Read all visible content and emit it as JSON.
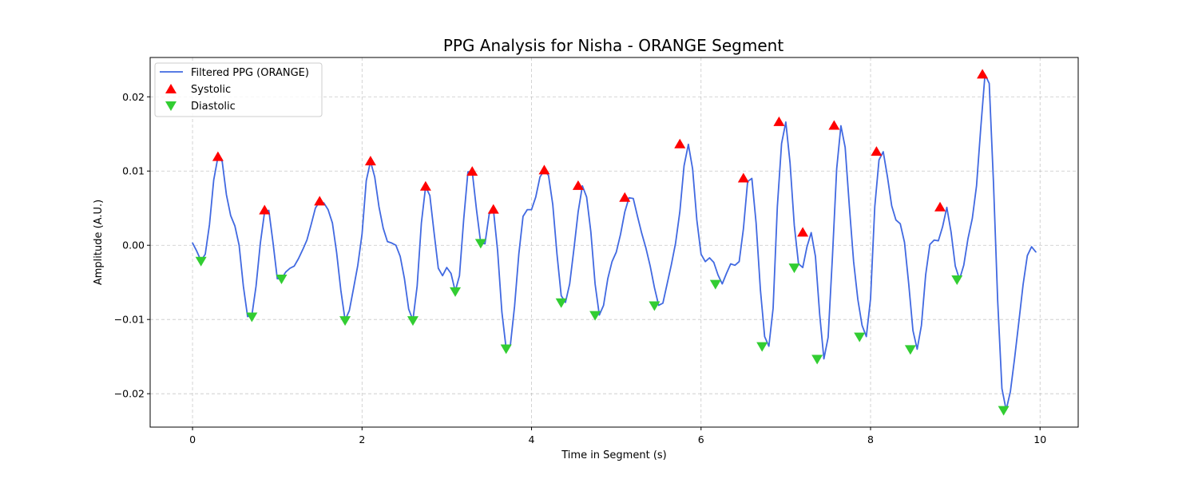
{
  "chart_data": {
    "type": "line",
    "title": "PPG Analysis for Nisha - ORANGE Segment",
    "xlabel": "Time in Segment (s)",
    "ylabel": "Amplitude (A.U.)",
    "xlim": [
      -0.5,
      10.45
    ],
    "ylim": [
      -0.0245,
      0.0253
    ],
    "xticks": [
      0,
      2,
      4,
      6,
      8,
      10
    ],
    "xtick_labels": [
      "0",
      "2",
      "4",
      "6",
      "8",
      "10"
    ],
    "yticks": [
      -0.02,
      -0.01,
      0.0,
      0.01,
      0.02
    ],
    "ytick_labels": [
      "−0.02",
      "−0.01",
      "0.00",
      "0.01",
      "0.02"
    ],
    "grid": true,
    "legend_position": "top-left",
    "series": [
      {
        "name": "Filtered PPG (ORANGE)",
        "kind": "line",
        "color": "#4169e1",
        "x": [
          0.0,
          0.05,
          0.1,
          0.15,
          0.2,
          0.25,
          0.3,
          0.35,
          0.4,
          0.45,
          0.5,
          0.55,
          0.6,
          0.65,
          0.7,
          0.75,
          0.8,
          0.85,
          0.9,
          0.95,
          1.0,
          1.05,
          1.1,
          1.15,
          1.2,
          1.25,
          1.3,
          1.35,
          1.4,
          1.45,
          1.5,
          1.55,
          1.6,
          1.65,
          1.7,
          1.75,
          1.8,
          1.85,
          1.9,
          1.95,
          2.0,
          2.05,
          2.1,
          2.15,
          2.2,
          2.25,
          2.3,
          2.35,
          2.4,
          2.45,
          2.5,
          2.55,
          2.6,
          2.65,
          2.7,
          2.75,
          2.8,
          2.85,
          2.9,
          2.95,
          3.0,
          3.05,
          3.1,
          3.15,
          3.2,
          3.25,
          3.3,
          3.35,
          3.4,
          3.45,
          3.5,
          3.55,
          3.6,
          3.65,
          3.7,
          3.75,
          3.8,
          3.85,
          3.9,
          3.95,
          4.0,
          4.05,
          4.1,
          4.15,
          4.2,
          4.25,
          4.3,
          4.35,
          4.4,
          4.45,
          4.5,
          4.55,
          4.6,
          4.65,
          4.7,
          4.75,
          4.8,
          4.85,
          4.9,
          4.95,
          5.0,
          5.05,
          5.1,
          5.15,
          5.2,
          5.25,
          5.3,
          5.35,
          5.4,
          5.45,
          5.5,
          5.55,
          5.6,
          5.65,
          5.7,
          5.75,
          5.8,
          5.85,
          5.9,
          5.95,
          6.0,
          6.05,
          6.1,
          6.15,
          6.2,
          6.25,
          6.3,
          6.35,
          6.4,
          6.45,
          6.5,
          6.55,
          6.6,
          6.65,
          6.7,
          6.75,
          6.8,
          6.85,
          6.9,
          6.95,
          7.0,
          7.05,
          7.1,
          7.15,
          7.2,
          7.25,
          7.3,
          7.35,
          7.4,
          7.45,
          7.5,
          7.55,
          7.6,
          7.65,
          7.7,
          7.75,
          7.8,
          7.85,
          7.9,
          7.95,
          8.0,
          8.05,
          8.1,
          8.15,
          8.2,
          8.25,
          8.3,
          8.35,
          8.4,
          8.45,
          8.5,
          8.55,
          8.6,
          8.65,
          8.7,
          8.75,
          8.8,
          8.85,
          8.9,
          8.95,
          9.0,
          9.05,
          9.1,
          9.15,
          9.2,
          9.25,
          9.3,
          9.35,
          9.4,
          9.45,
          9.5,
          9.55,
          9.6,
          9.65,
          9.7,
          9.75,
          9.8,
          9.85,
          9.9,
          9.95
        ],
        "y": [
          0.0003,
          -0.0008,
          -0.0021,
          -0.0012,
          0.0028,
          0.0088,
          0.0119,
          0.0113,
          0.0068,
          0.004,
          0.0026,
          0.0,
          -0.0055,
          -0.0096,
          -0.0095,
          -0.0055,
          0.0003,
          0.0045,
          0.0047,
          0.0003,
          -0.0045,
          -0.0045,
          -0.0036,
          -0.0031,
          -0.0028,
          -0.0018,
          -0.0006,
          0.0007,
          0.0028,
          0.005,
          0.0059,
          0.0057,
          0.0048,
          0.003,
          -0.001,
          -0.0061,
          -0.0101,
          -0.0088,
          -0.0058,
          -0.0027,
          0.0015,
          0.0087,
          0.0113,
          0.0092,
          0.0052,
          0.0023,
          0.0005,
          0.0003,
          0.0,
          -0.0015,
          -0.0045,
          -0.0086,
          -0.0101,
          -0.0055,
          0.003,
          0.0079,
          0.0067,
          0.0017,
          -0.0031,
          -0.0041,
          -0.003,
          -0.0038,
          -0.0062,
          -0.0041,
          0.0035,
          0.0099,
          0.0099,
          0.0048,
          0.0003,
          0.0002,
          0.0042,
          0.0048,
          -0.0008,
          -0.009,
          -0.0139,
          -0.0135,
          -0.0082,
          -0.0012,
          0.0039,
          0.0048,
          0.0048,
          0.0065,
          0.0092,
          0.0101,
          0.0094,
          0.0055,
          -0.0012,
          -0.0068,
          -0.0077,
          -0.0052,
          -0.0005,
          0.0045,
          0.008,
          0.0065,
          0.0018,
          -0.0052,
          -0.0094,
          -0.0081,
          -0.0045,
          -0.0022,
          -0.0009,
          0.0015,
          0.0045,
          0.0064,
          0.0063,
          0.0039,
          0.0016,
          -0.0004,
          -0.0028,
          -0.0057,
          -0.0081,
          -0.0078,
          -0.0052,
          -0.0026,
          0.0003,
          0.0045,
          0.0107,
          0.0136,
          0.0103,
          0.0034,
          -0.0012,
          -0.0022,
          -0.0017,
          -0.0023,
          -0.004,
          -0.0052,
          -0.0038,
          -0.0025,
          -0.0027,
          -0.0022,
          0.0022,
          0.0086,
          0.009,
          0.003,
          -0.006,
          -0.0123,
          -0.0136,
          -0.0085,
          0.0052,
          0.0137,
          0.0166,
          0.0111,
          0.0027,
          -0.0025,
          -0.003,
          -0.0002,
          0.0017,
          -0.0015,
          -0.0093,
          -0.0153,
          -0.0124,
          -0.0015,
          0.0103,
          0.0161,
          0.0132,
          0.0052,
          -0.0022,
          -0.0073,
          -0.0108,
          -0.0123,
          -0.0072,
          0.0052,
          0.0115,
          0.0126,
          0.0092,
          0.0053,
          0.0034,
          0.0029,
          0.0004,
          -0.0052,
          -0.0115,
          -0.014,
          -0.0108,
          -0.004,
          0.0001,
          0.0007,
          0.0006,
          0.0025,
          0.0051,
          0.0018,
          -0.0028,
          -0.0046,
          -0.0027,
          0.0009,
          0.0036,
          0.008,
          0.0158,
          0.023,
          0.0218,
          0.0085,
          -0.0075,
          -0.0193,
          -0.0222,
          -0.0197,
          -0.0152,
          -0.0103,
          -0.0053,
          -0.0014,
          -0.0002,
          -0.0009
        ]
      },
      {
        "name": "Systolic",
        "kind": "markers",
        "marker": "triangle-up",
        "color": "#ff0000",
        "x": [
          0.3,
          0.85,
          1.5,
          2.1,
          2.75,
          3.3,
          3.55,
          4.15,
          4.55,
          5.1,
          5.75,
          6.5,
          6.92,
          7.2,
          7.57,
          8.07,
          8.82,
          9.32
        ],
        "y": [
          0.0119,
          0.0047,
          0.0059,
          0.0113,
          0.0079,
          0.0099,
          0.0048,
          0.0101,
          0.008,
          0.0064,
          0.0136,
          0.009,
          0.0166,
          0.0017,
          0.0161,
          0.0126,
          0.0051,
          0.023
        ]
      },
      {
        "name": "Diastolic",
        "kind": "markers",
        "marker": "triangle-down",
        "color": "#32cd32",
        "x": [
          0.1,
          0.7,
          1.05,
          1.8,
          2.6,
          3.1,
          3.4,
          3.7,
          4.35,
          4.75,
          5.45,
          6.17,
          6.72,
          7.1,
          7.37,
          7.87,
          8.47,
          9.02,
          9.57
        ],
        "y": [
          -0.0021,
          -0.0096,
          -0.0045,
          -0.0101,
          -0.0101,
          -0.0062,
          0.0003,
          -0.0139,
          -0.0077,
          -0.0094,
          -0.0081,
          -0.0052,
          -0.0136,
          -0.003,
          -0.0153,
          -0.0123,
          -0.014,
          -0.0046,
          -0.0222
        ]
      }
    ]
  }
}
